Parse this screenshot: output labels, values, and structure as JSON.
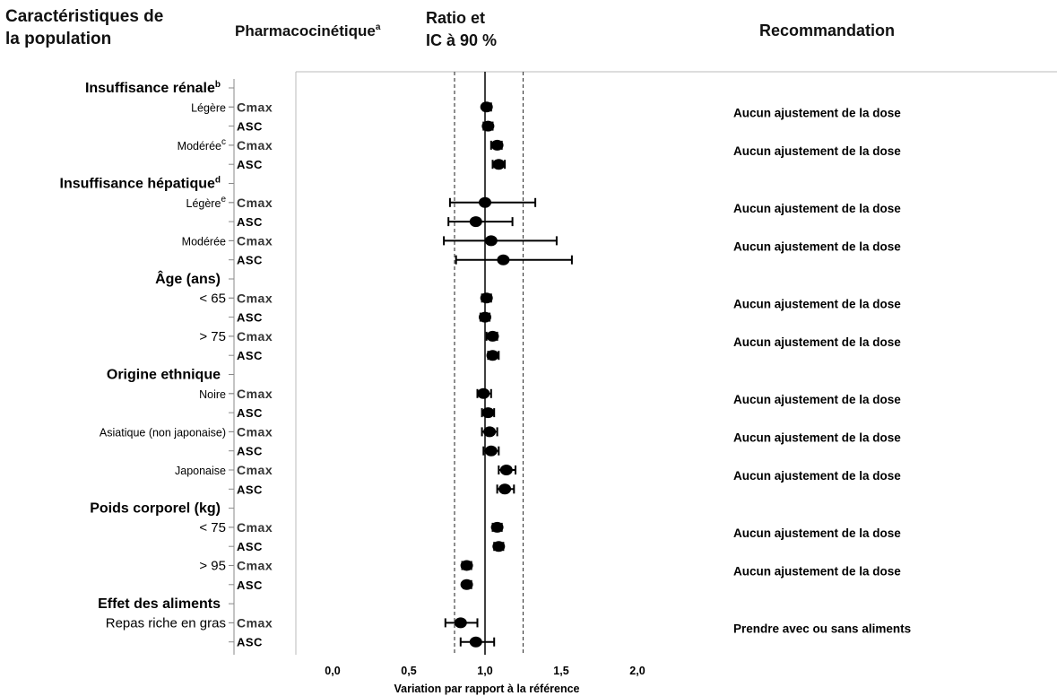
{
  "headers": {
    "population_line1": "Caractéristiques de",
    "population_line2": "la population",
    "pk": "Pharmacocinétique",
    "pk_sup": "a",
    "ratio_line1": "Ratio et",
    "ratio_line2": "IC à 90 %",
    "recommendation": "Recommandation"
  },
  "chart_data": {
    "type": "forest",
    "xlabel": "Variation par rapport à la référence",
    "xlim": [
      -0.3,
      2.0
    ],
    "xticks": [
      0.0,
      0.5,
      1.0,
      1.5,
      2.0
    ],
    "xtick_labels": [
      "0,0",
      "0,5",
      "1,0",
      "1,5",
      "2,0"
    ],
    "reference_line": 1.0,
    "dashed_lines": [
      0.8,
      1.25
    ],
    "groups": [
      {
        "label": "Insuffisance rénale",
        "sup": "b",
        "row": 0
      },
      {
        "label": "Insuffisance hépatique",
        "sup": "d",
        "row": 5
      },
      {
        "label": "Âge (ans)",
        "sup": "",
        "row": 10
      },
      {
        "label": "Origine ethnique",
        "sup": "",
        "row": 15
      },
      {
        "label": "Poids corporel (kg)",
        "sup": "",
        "row": 22
      },
      {
        "label": "Effet des aliments",
        "sup": "",
        "row": 27
      }
    ],
    "subgroups": [
      {
        "label": "Légère",
        "sup": "",
        "big": false,
        "row": 1,
        "recommendation": "Aucun ajustement de la dose"
      },
      {
        "label": "Modérée",
        "sup": "c",
        "big": false,
        "row": 3,
        "recommendation": "Aucun ajustement de la dose"
      },
      {
        "label": "Légère",
        "sup": "e",
        "big": false,
        "row": 6,
        "recommendation": "Aucun ajustement de la dose"
      },
      {
        "label": "Modérée",
        "sup": "",
        "big": false,
        "row": 8,
        "recommendation": "Aucun ajustement de la dose"
      },
      {
        "label": "< 65",
        "sup": "",
        "big": true,
        "row": 11,
        "recommendation": "Aucun ajustement de la dose"
      },
      {
        "label": "> 75",
        "sup": "",
        "big": true,
        "row": 13,
        "recommendation": "Aucun ajustement de la dose"
      },
      {
        "label": "Noire",
        "sup": "",
        "big": false,
        "row": 16,
        "recommendation": "Aucun ajustement de la dose"
      },
      {
        "label": "Asiatique (non japonaise)",
        "sup": "",
        "big": false,
        "row": 18,
        "recommendation": "Aucun ajustement de la dose"
      },
      {
        "label": "Japonaise",
        "sup": "",
        "big": false,
        "row": 20,
        "recommendation": "Aucun ajustement de la dose"
      },
      {
        "label": "< 75",
        "sup": "",
        "big": true,
        "row": 23,
        "recommendation": "Aucun ajustement de la dose"
      },
      {
        "label": "> 95",
        "sup": "",
        "big": true,
        "row": 25,
        "recommendation": "Aucun ajustement de la dose"
      },
      {
        "label": "Repas riche en gras",
        "sup": "",
        "big": true,
        "row": 28,
        "recommendation": "Prendre avec ou sans aliments"
      }
    ],
    "measurements": [
      {
        "row": 1,
        "pk": "Cmax",
        "ratio": 1.01,
        "low": 0.99,
        "high": 1.04
      },
      {
        "row": 2,
        "pk": "ASC",
        "ratio": 1.02,
        "low": 0.99,
        "high": 1.05
      },
      {
        "row": 3,
        "pk": "Cmax",
        "ratio": 1.08,
        "low": 1.04,
        "high": 1.11
      },
      {
        "row": 4,
        "pk": "ASC",
        "ratio": 1.09,
        "low": 1.05,
        "high": 1.13
      },
      {
        "row": 6,
        "pk": "Cmax",
        "ratio": 1.0,
        "low": 0.77,
        "high": 1.33
      },
      {
        "row": 7,
        "pk": "ASC",
        "ratio": 0.94,
        "low": 0.76,
        "high": 1.18
      },
      {
        "row": 8,
        "pk": "Cmax",
        "ratio": 1.04,
        "low": 0.73,
        "high": 1.47
      },
      {
        "row": 9,
        "pk": "ASC",
        "ratio": 1.12,
        "low": 0.81,
        "high": 1.57
      },
      {
        "row": 11,
        "pk": "Cmax",
        "ratio": 1.01,
        "low": 0.98,
        "high": 1.04
      },
      {
        "row": 12,
        "pk": "ASC",
        "ratio": 1.0,
        "low": 0.97,
        "high": 1.03
      },
      {
        "row": 13,
        "pk": "Cmax",
        "ratio": 1.05,
        "low": 1.01,
        "high": 1.08
      },
      {
        "row": 14,
        "pk": "ASC",
        "ratio": 1.05,
        "low": 1.02,
        "high": 1.09
      },
      {
        "row": 16,
        "pk": "Cmax",
        "ratio": 0.99,
        "low": 0.95,
        "high": 1.04
      },
      {
        "row": 17,
        "pk": "ASC",
        "ratio": 1.02,
        "low": 0.98,
        "high": 1.06
      },
      {
        "row": 18,
        "pk": "Cmax",
        "ratio": 1.03,
        "low": 0.98,
        "high": 1.08
      },
      {
        "row": 19,
        "pk": "ASC",
        "ratio": 1.04,
        "low": 0.99,
        "high": 1.09
      },
      {
        "row": 20,
        "pk": "Cmax",
        "ratio": 1.14,
        "low": 1.09,
        "high": 1.2
      },
      {
        "row": 21,
        "pk": "ASC",
        "ratio": 1.13,
        "low": 1.08,
        "high": 1.19
      },
      {
        "row": 23,
        "pk": "Cmax",
        "ratio": 1.08,
        "low": 1.05,
        "high": 1.11
      },
      {
        "row": 24,
        "pk": "ASC",
        "ratio": 1.09,
        "low": 1.06,
        "high": 1.12
      },
      {
        "row": 25,
        "pk": "Cmax",
        "ratio": 0.88,
        "low": 0.85,
        "high": 0.91
      },
      {
        "row": 26,
        "pk": "ASC",
        "ratio": 0.88,
        "low": 0.86,
        "high": 0.91
      },
      {
        "row": 28,
        "pk": "Cmax",
        "ratio": 0.84,
        "low": 0.74,
        "high": 0.95
      },
      {
        "row": 29,
        "pk": "ASC",
        "ratio": 0.94,
        "low": 0.84,
        "high": 1.06
      }
    ]
  },
  "colors": {
    "text": "#000000",
    "cmax_text": "#333333",
    "lines": "#000000",
    "axis_gray": "#888888",
    "frame_gray": "#bbbbbb"
  }
}
